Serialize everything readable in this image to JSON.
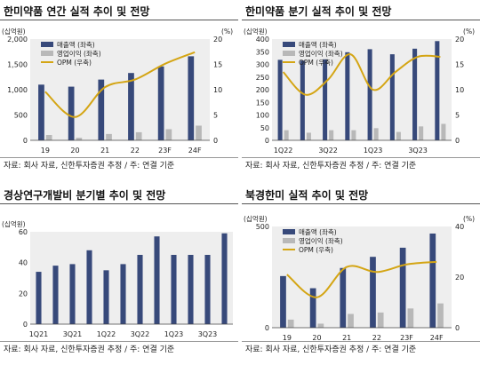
{
  "colors": {
    "sales": "#37497A",
    "op": "#B8B8B8",
    "opm": "#D4A514",
    "bg_box": "#EEEEEE"
  },
  "panels": [
    {
      "title": "한미약품 연간 실적 추이 및 전망",
      "source": "자료: 회사 자료, 신한투자증권 추정 / 주: 연결 기준",
      "chart_data": {
        "type": "bar",
        "left_unit": "(십억원)",
        "right_unit": "(%)",
        "categories": [
          "19",
          "20",
          "21",
          "22",
          "23F",
          "24F"
        ],
        "series": [
          {
            "name": "매출액 (좌축)",
            "axis": "left",
            "type": "bar",
            "values": [
              1100,
              1060,
              1200,
              1330,
              1460,
              1660
            ]
          },
          {
            "name": "영업이익 (좌축)",
            "axis": "left",
            "type": "bar",
            "values": [
              105,
              50,
              125,
              160,
              220,
              290
            ]
          },
          {
            "name": "OPM (우축)",
            "axis": "right",
            "type": "line",
            "values": [
              9.6,
              4.6,
              10.5,
              12.0,
              15.1,
              17.4
            ]
          }
        ],
        "left_ylim": [
          0,
          2000
        ],
        "left_ticks": [
          0,
          500,
          1000,
          1500,
          2000
        ],
        "left_tick_labels": [
          "0",
          "500",
          "1,000",
          "1,500",
          "2,000"
        ],
        "right_ylim": [
          0,
          20
        ],
        "right_ticks": [
          0,
          5,
          10,
          15,
          20
        ],
        "right_tick_labels": [
          "0",
          "5",
          "10",
          "15",
          "20"
        ],
        "x_tick_labels": [
          "19",
          "20",
          "21",
          "22",
          "23F",
          "24F"
        ],
        "legend": "top-left"
      }
    },
    {
      "title": "한미약품 분기 실적 추이 및 전망",
      "source": "자료: 회사 자료, 신한투자증권 추정 / 주: 연결 기준",
      "chart_data": {
        "type": "bar",
        "left_unit": "(십억원)",
        "right_unit": "(%)",
        "categories": [
          "1Q22",
          "2Q22",
          "3Q22",
          "4Q22",
          "1Q23",
          "2Q23",
          "3Q23",
          "4Q23"
        ],
        "series": [
          {
            "name": "매출액 (좌축)",
            "axis": "left",
            "type": "bar",
            "values": [
              318,
              315,
              320,
              348,
              360,
              340,
              362,
              392
            ]
          },
          {
            "name": "영업이익 (좌축)",
            "axis": "left",
            "type": "bar",
            "values": [
              40,
              30,
              40,
              40,
              48,
              33,
              55,
              65
            ]
          },
          {
            "name": "OPM (우축)",
            "axis": "right",
            "type": "line",
            "values": [
              13.5,
              9.0,
              12.0,
              17.0,
              10.0,
              13.5,
              16.5,
              16.5
            ]
          }
        ],
        "left_ylim": [
          0,
          400
        ],
        "left_ticks": [
          0,
          50,
          100,
          150,
          200,
          250,
          300,
          350,
          400
        ],
        "left_tick_labels": [
          "0",
          "50",
          "100",
          "150",
          "200",
          "250",
          "300",
          "350",
          "400"
        ],
        "right_ylim": [
          0,
          20
        ],
        "right_ticks": [
          0,
          5,
          10,
          15,
          20
        ],
        "right_tick_labels": [
          "0",
          "5",
          "10",
          "15",
          "20"
        ],
        "x_tick_labels": [
          "1Q22",
          "3Q22",
          "1Q23",
          "3Q23"
        ],
        "x_tick_every": 2,
        "legend": "top-left"
      }
    },
    {
      "title": "경상연구개발비 분기별 추이 및 전망",
      "source": "자료: 회사 자료, 신한투자증권 추정 / 주: 연결 기준",
      "chart_data": {
        "type": "bar",
        "left_unit": "(십억원)",
        "categories": [
          "1Q21",
          "2Q21",
          "3Q21",
          "4Q21",
          "1Q22",
          "2Q22",
          "3Q22",
          "4Q22",
          "1Q23",
          "2Q23",
          "3Q23",
          "4Q23"
        ],
        "series": [
          {
            "name": "",
            "axis": "left",
            "type": "bar",
            "values": [
              34,
              38,
              39,
              48,
              35,
              39,
              45,
              57,
              45,
              45,
              45,
              59
            ]
          }
        ],
        "left_ylim": [
          0,
          60
        ],
        "left_ticks": [
          0,
          20,
          40,
          60
        ],
        "left_tick_labels": [
          "0",
          "20",
          "40",
          "60"
        ],
        "x_tick_labels": [
          "1Q21",
          "3Q21",
          "1Q22",
          "3Q22",
          "1Q23",
          "3Q23"
        ],
        "x_tick_every": 2
      }
    },
    {
      "title": "북경한미 실적 추이 및 전망",
      "source": "자료: 회사 자료, 신한투자증권 추정 / 주: 연결 기준",
      "chart_data": {
        "type": "bar",
        "left_unit": "(십억원)",
        "right_unit": "(%)",
        "categories": [
          "19",
          "20",
          "21",
          "22",
          "23F",
          "24F"
        ],
        "series": [
          {
            "name": "매출액 (좌축)",
            "axis": "left",
            "type": "bar",
            "values": [
              255,
              195,
              295,
              350,
              395,
              465
            ]
          },
          {
            "name": "영업이익 (좌축)",
            "axis": "left",
            "type": "bar",
            "values": [
              40,
              20,
              68,
              75,
              95,
              120
            ]
          },
          {
            "name": "OPM (우축)",
            "axis": "right",
            "type": "line",
            "values": [
              21,
              12,
              24,
              22,
              25,
              26
            ]
          }
        ],
        "left_ylim": [
          0,
          500
        ],
        "left_ticks": [
          0,
          500
        ],
        "left_tick_labels": [
          "0",
          "500"
        ],
        "right_ylim": [
          0,
          40
        ],
        "right_ticks": [
          0,
          20,
          40
        ],
        "right_tick_labels": [
          "0",
          "20",
          "40"
        ],
        "x_tick_labels": [
          "19",
          "20",
          "21",
          "22",
          "23F",
          "24F"
        ],
        "legend": "top-left"
      }
    }
  ]
}
